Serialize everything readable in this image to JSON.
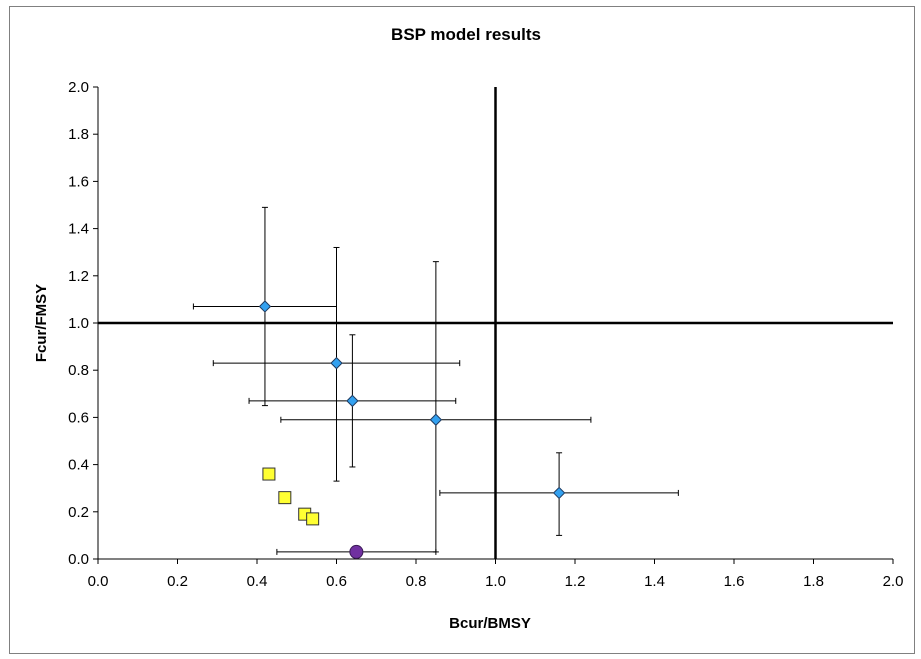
{
  "chart_data": {
    "type": "scatter",
    "title": "BSP model results",
    "xlabel": "Bcur/BMSY",
    "ylabel": "Fcur/FMSY",
    "xlim": [
      0,
      2
    ],
    "ylim": [
      0,
      2
    ],
    "xticks": [
      "0.0",
      "0.2",
      "0.4",
      "0.6",
      "0.8",
      "1.0",
      "1.2",
      "1.4",
      "1.6",
      "1.8",
      "2.0"
    ],
    "yticks": [
      "0.0",
      "0.2",
      "0.4",
      "0.6",
      "0.8",
      "1.0",
      "1.2",
      "1.4",
      "1.6",
      "1.8",
      "2.0"
    ],
    "grid": false,
    "legend": false,
    "reference_lines": {
      "x": 1.0,
      "y": 1.0
    },
    "series": [
      {
        "marker": "diamond",
        "color": "#33a1f0",
        "points": [
          {
            "x": 0.42,
            "y": 1.07,
            "xerr": [
              0.24,
              0.6
            ],
            "yerr": [
              0.65,
              1.49
            ]
          },
          {
            "x": 0.6,
            "y": 0.83,
            "xerr": [
              0.29,
              0.91
            ],
            "yerr": [
              0.33,
              1.32
            ]
          },
          {
            "x": 0.64,
            "y": 0.67,
            "xerr": [
              0.38,
              0.9
            ],
            "yerr": [
              0.39,
              0.95
            ]
          },
          {
            "x": 0.85,
            "y": 0.59,
            "xerr": [
              0.46,
              1.24
            ],
            "yerr": [
              0.03,
              1.26
            ]
          },
          {
            "x": 1.16,
            "y": 0.28,
            "xerr": [
              0.86,
              1.46
            ],
            "yerr": [
              0.1,
              0.45
            ]
          }
        ]
      },
      {
        "marker": "square",
        "color": "#ffff33",
        "points": [
          {
            "x": 0.43,
            "y": 0.36
          },
          {
            "x": 0.47,
            "y": 0.26
          },
          {
            "x": 0.52,
            "y": 0.19
          },
          {
            "x": 0.54,
            "y": 0.17
          }
        ]
      },
      {
        "marker": "circle",
        "color": "#7030a0",
        "points": [
          {
            "x": 0.65,
            "y": 0.03,
            "xerr": [
              0.45,
              0.85
            ]
          }
        ]
      }
    ]
  }
}
